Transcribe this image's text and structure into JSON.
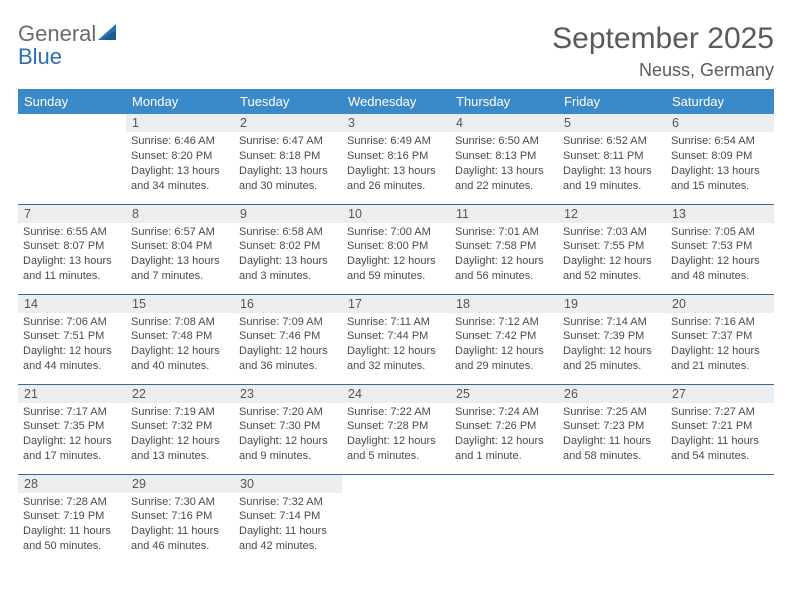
{
  "logo": {
    "word1": "General",
    "word2": "Blue"
  },
  "title": "September 2025",
  "location": "Neuss, Germany",
  "header_bg": "#3a8ac9",
  "row_border": "#2f6aa3",
  "daynum_bg": "#ebedee",
  "columns": [
    "Sunday",
    "Monday",
    "Tuesday",
    "Wednesday",
    "Thursday",
    "Friday",
    "Saturday"
  ],
  "weeks": [
    [
      null,
      {
        "d": "1",
        "sr": "6:46 AM",
        "ss": "8:20 PM",
        "dl": "13 hours and 34 minutes."
      },
      {
        "d": "2",
        "sr": "6:47 AM",
        "ss": "8:18 PM",
        "dl": "13 hours and 30 minutes."
      },
      {
        "d": "3",
        "sr": "6:49 AM",
        "ss": "8:16 PM",
        "dl": "13 hours and 26 minutes."
      },
      {
        "d": "4",
        "sr": "6:50 AM",
        "ss": "8:13 PM",
        "dl": "13 hours and 22 minutes."
      },
      {
        "d": "5",
        "sr": "6:52 AM",
        "ss": "8:11 PM",
        "dl": "13 hours and 19 minutes."
      },
      {
        "d": "6",
        "sr": "6:54 AM",
        "ss": "8:09 PM",
        "dl": "13 hours and 15 minutes."
      }
    ],
    [
      {
        "d": "7",
        "sr": "6:55 AM",
        "ss": "8:07 PM",
        "dl": "13 hours and 11 minutes."
      },
      {
        "d": "8",
        "sr": "6:57 AM",
        "ss": "8:04 PM",
        "dl": "13 hours and 7 minutes."
      },
      {
        "d": "9",
        "sr": "6:58 AM",
        "ss": "8:02 PM",
        "dl": "13 hours and 3 minutes."
      },
      {
        "d": "10",
        "sr": "7:00 AM",
        "ss": "8:00 PM",
        "dl": "12 hours and 59 minutes."
      },
      {
        "d": "11",
        "sr": "7:01 AM",
        "ss": "7:58 PM",
        "dl": "12 hours and 56 minutes."
      },
      {
        "d": "12",
        "sr": "7:03 AM",
        "ss": "7:55 PM",
        "dl": "12 hours and 52 minutes."
      },
      {
        "d": "13",
        "sr": "7:05 AM",
        "ss": "7:53 PM",
        "dl": "12 hours and 48 minutes."
      }
    ],
    [
      {
        "d": "14",
        "sr": "7:06 AM",
        "ss": "7:51 PM",
        "dl": "12 hours and 44 minutes."
      },
      {
        "d": "15",
        "sr": "7:08 AM",
        "ss": "7:48 PM",
        "dl": "12 hours and 40 minutes."
      },
      {
        "d": "16",
        "sr": "7:09 AM",
        "ss": "7:46 PM",
        "dl": "12 hours and 36 minutes."
      },
      {
        "d": "17",
        "sr": "7:11 AM",
        "ss": "7:44 PM",
        "dl": "12 hours and 32 minutes."
      },
      {
        "d": "18",
        "sr": "7:12 AM",
        "ss": "7:42 PM",
        "dl": "12 hours and 29 minutes."
      },
      {
        "d": "19",
        "sr": "7:14 AM",
        "ss": "7:39 PM",
        "dl": "12 hours and 25 minutes."
      },
      {
        "d": "20",
        "sr": "7:16 AM",
        "ss": "7:37 PM",
        "dl": "12 hours and 21 minutes."
      }
    ],
    [
      {
        "d": "21",
        "sr": "7:17 AM",
        "ss": "7:35 PM",
        "dl": "12 hours and 17 minutes."
      },
      {
        "d": "22",
        "sr": "7:19 AM",
        "ss": "7:32 PM",
        "dl": "12 hours and 13 minutes."
      },
      {
        "d": "23",
        "sr": "7:20 AM",
        "ss": "7:30 PM",
        "dl": "12 hours and 9 minutes."
      },
      {
        "d": "24",
        "sr": "7:22 AM",
        "ss": "7:28 PM",
        "dl": "12 hours and 5 minutes."
      },
      {
        "d": "25",
        "sr": "7:24 AM",
        "ss": "7:26 PM",
        "dl": "12 hours and 1 minute."
      },
      {
        "d": "26",
        "sr": "7:25 AM",
        "ss": "7:23 PM",
        "dl": "11 hours and 58 minutes."
      },
      {
        "d": "27",
        "sr": "7:27 AM",
        "ss": "7:21 PM",
        "dl": "11 hours and 54 minutes."
      }
    ],
    [
      {
        "d": "28",
        "sr": "7:28 AM",
        "ss": "7:19 PM",
        "dl": "11 hours and 50 minutes."
      },
      {
        "d": "29",
        "sr": "7:30 AM",
        "ss": "7:16 PM",
        "dl": "11 hours and 46 minutes."
      },
      {
        "d": "30",
        "sr": "7:32 AM",
        "ss": "7:14 PM",
        "dl": "11 hours and 42 minutes."
      },
      null,
      null,
      null,
      null
    ]
  ],
  "labels": {
    "sunrise": "Sunrise:",
    "sunset": "Sunset:",
    "daylight": "Daylight:"
  }
}
